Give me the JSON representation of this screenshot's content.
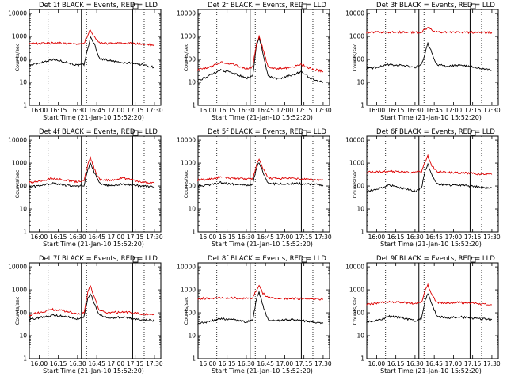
{
  "colors": {
    "events": "#000000",
    "lld": "#dd0000",
    "axis": "#000000",
    "background": "#ffffff"
  },
  "chart_data": [
    {
      "type": "line",
      "title": "Det 1f BLACK = Events, RED = LLD",
      "xlabel": "Start Time (21-Jan-10 15:52:20)",
      "ylabel": "Counts/sec",
      "xticks": [
        "16:00",
        "16:15",
        "16:30",
        "16:45",
        "17:00",
        "17:15",
        "17:30"
      ],
      "yticks": [
        "1",
        "10",
        "100",
        "1000",
        "10000"
      ],
      "ylim": [
        1,
        15000
      ],
      "yscale": "log",
      "series": [
        {
          "name": "Events",
          "x": [
            "15:52",
            "16:00",
            "16:10",
            "16:20",
            "16:30",
            "16:35",
            "16:38",
            "16:40",
            "16:43",
            "16:47",
            "16:55",
            "17:05",
            "17:13",
            "17:20",
            "17:30"
          ],
          "values": [
            55,
            70,
            100,
            80,
            55,
            60,
            300,
            900,
            500,
            110,
            90,
            70,
            70,
            60,
            45
          ]
        },
        {
          "name": "LLD",
          "x": [
            "15:52",
            "16:00",
            "16:10",
            "16:20",
            "16:30",
            "16:35",
            "16:38",
            "16:40",
            "16:43",
            "16:47",
            "16:55",
            "17:05",
            "17:13",
            "17:20",
            "17:30"
          ],
          "values": [
            480,
            500,
            520,
            510,
            480,
            500,
            1200,
            2000,
            1000,
            520,
            500,
            520,
            500,
            460,
            430
          ]
        }
      ]
    },
    {
      "type": "line",
      "title": "Det 2f BLACK = Events, RED = LLD",
      "xlabel": "Start Time (21-Jan-10 15:52:20)",
      "ylabel": "Counts/sec",
      "xticks": [
        "16:00",
        "16:15",
        "16:30",
        "16:45",
        "17:00",
        "17:15",
        "17:30"
      ],
      "yticks": [
        "1",
        "10",
        "100",
        "1000",
        "10000"
      ],
      "ylim": [
        1,
        15000
      ],
      "yscale": "log",
      "series": [
        {
          "name": "Events",
          "x": [
            "15:52",
            "16:00",
            "16:10",
            "16:20",
            "16:30",
            "16:35",
            "16:38",
            "16:40",
            "16:43",
            "16:47",
            "16:55",
            "17:05",
            "17:13",
            "17:20",
            "17:30"
          ],
          "values": [
            12,
            18,
            35,
            25,
            15,
            20,
            400,
            900,
            200,
            18,
            14,
            20,
            30,
            15,
            10
          ]
        },
        {
          "name": "LLD",
          "x": [
            "15:52",
            "16:00",
            "16:10",
            "16:20",
            "16:30",
            "16:35",
            "16:38",
            "16:40",
            "16:43",
            "16:47",
            "16:55",
            "17:05",
            "17:13",
            "17:20",
            "17:30"
          ],
          "values": [
            35,
            45,
            75,
            60,
            40,
            45,
            500,
            1000,
            280,
            45,
            40,
            45,
            60,
            40,
            30
          ]
        }
      ]
    },
    {
      "type": "line",
      "title": "Det 3f BLACK = Events, RED = LLD",
      "xlabel": "Start Time (21-Jan-10 15:52:20)",
      "ylabel": "Counts/sec",
      "xticks": [
        "16:00",
        "16:15",
        "16:30",
        "16:45",
        "17:00",
        "17:15",
        "17:30"
      ],
      "yticks": [
        "1",
        "10",
        "100",
        "1000",
        "10000"
      ],
      "ylim": [
        1,
        15000
      ],
      "yscale": "log",
      "series": [
        {
          "name": "Events",
          "x": [
            "15:52",
            "16:00",
            "16:10",
            "16:20",
            "16:30",
            "16:35",
            "16:38",
            "16:40",
            "16:43",
            "16:47",
            "16:55",
            "17:05",
            "17:13",
            "17:20",
            "17:30"
          ],
          "values": [
            40,
            45,
            60,
            55,
            45,
            60,
            200,
            500,
            200,
            60,
            50,
            55,
            50,
            40,
            35
          ]
        },
        {
          "name": "LLD",
          "x": [
            "15:52",
            "16:00",
            "16:10",
            "16:20",
            "16:30",
            "16:35",
            "16:38",
            "16:40",
            "16:43",
            "16:47",
            "16:55",
            "17:05",
            "17:13",
            "17:20",
            "17:30"
          ],
          "values": [
            1500,
            1520,
            1540,
            1530,
            1500,
            1550,
            2000,
            2600,
            1900,
            1550,
            1520,
            1530,
            1510,
            1500,
            1480
          ]
        }
      ]
    },
    {
      "type": "line",
      "title": "Det 4f BLACK = Events, RED = LLD",
      "xlabel": "Start Time (21-Jan-10 15:52:20)",
      "ylabel": "Counts/sec",
      "xticks": [
        "16:00",
        "16:15",
        "16:30",
        "16:45",
        "17:00",
        "17:15",
        "17:30"
      ],
      "yticks": [
        "1",
        "10",
        "100",
        "1000",
        "10000"
      ],
      "ylim": [
        1,
        15000
      ],
      "yscale": "log",
      "series": [
        {
          "name": "Events",
          "x": [
            "15:52",
            "16:00",
            "16:10",
            "16:20",
            "16:30",
            "16:35",
            "16:38",
            "16:40",
            "16:43",
            "16:47",
            "16:55",
            "17:05",
            "17:13",
            "17:20",
            "17:30"
          ],
          "values": [
            90,
            100,
            130,
            110,
            95,
            110,
            500,
            1000,
            400,
            130,
            100,
            120,
            110,
            100,
            90
          ]
        },
        {
          "name": "LLD",
          "x": [
            "15:52",
            "16:00",
            "16:10",
            "16:20",
            "16:30",
            "16:35",
            "16:38",
            "16:40",
            "16:43",
            "16:47",
            "16:55",
            "17:05",
            "17:13",
            "17:20",
            "17:30"
          ],
          "values": [
            140,
            160,
            220,
            180,
            150,
            170,
            900,
            1800,
            600,
            200,
            180,
            220,
            190,
            150,
            130
          ]
        }
      ]
    },
    {
      "type": "line",
      "title": "Det 5f BLACK = Events, RED = LLD",
      "xlabel": "Start Time (21-Jan-10 15:52:20)",
      "ylabel": "Counts/sec",
      "xticks": [
        "16:00",
        "16:15",
        "16:30",
        "16:45",
        "17:00",
        "17:15",
        "17:30"
      ],
      "yticks": [
        "1",
        "10",
        "100",
        "1000",
        "10000"
      ],
      "ylim": [
        1,
        15000
      ],
      "yscale": "log",
      "series": [
        {
          "name": "Events",
          "x": [
            "15:52",
            "16:00",
            "16:10",
            "16:20",
            "16:30",
            "16:35",
            "16:38",
            "16:40",
            "16:43",
            "16:47",
            "16:55",
            "17:05",
            "17:13",
            "17:20",
            "17:30"
          ],
          "values": [
            100,
            110,
            140,
            120,
            110,
            120,
            600,
            1100,
            400,
            130,
            120,
            130,
            125,
            120,
            110
          ]
        },
        {
          "name": "LLD",
          "x": [
            "15:52",
            "16:00",
            "16:10",
            "16:20",
            "16:30",
            "16:35",
            "16:38",
            "16:40",
            "16:43",
            "16:47",
            "16:55",
            "17:05",
            "17:13",
            "17:20",
            "17:30"
          ],
          "values": [
            180,
            200,
            240,
            220,
            200,
            210,
            800,
            1500,
            550,
            230,
            210,
            220,
            200,
            190,
            180
          ]
        }
      ]
    },
    {
      "type": "line",
      "title": "Det 6f BLACK = Events, RED = LLD",
      "xlabel": "Start Time (21-Jan-10 15:52:20)",
      "ylabel": "Counts/sec",
      "xticks": [
        "16:00",
        "16:15",
        "16:30",
        "16:45",
        "17:00",
        "17:15",
        "17:30"
      ],
      "yticks": [
        "1",
        "10",
        "100",
        "1000",
        "10000"
      ],
      "ylim": [
        1,
        15000
      ],
      "yscale": "log",
      "series": [
        {
          "name": "Events",
          "x": [
            "15:52",
            "16:00",
            "16:10",
            "16:20",
            "16:30",
            "16:35",
            "16:38",
            "16:40",
            "16:43",
            "16:47",
            "16:55",
            "17:05",
            "17:13",
            "17:20",
            "17:30"
          ],
          "values": [
            60,
            70,
            110,
            80,
            60,
            80,
            500,
            900,
            300,
            120,
            110,
            110,
            100,
            90,
            80
          ]
        },
        {
          "name": "LLD",
          "x": [
            "15:52",
            "16:00",
            "16:10",
            "16:20",
            "16:30",
            "16:35",
            "16:38",
            "16:40",
            "16:43",
            "16:47",
            "16:55",
            "17:05",
            "17:13",
            "17:20",
            "17:30"
          ],
          "values": [
            400,
            410,
            430,
            420,
            400,
            420,
            1200,
            2000,
            800,
            420,
            400,
            380,
            360,
            340,
            320
          ]
        }
      ]
    },
    {
      "type": "line",
      "title": "Det 7f BLACK = Events, RED = LLD",
      "xlabel": "Start Time (21-Jan-10 15:52:20)",
      "ylabel": "Counts/sec",
      "xticks": [
        "16:00",
        "16:15",
        "16:30",
        "16:45",
        "17:00",
        "17:15",
        "17:30"
      ],
      "yticks": [
        "1",
        "10",
        "100",
        "1000",
        "10000"
      ],
      "ylim": [
        1,
        15000
      ],
      "yscale": "log",
      "series": [
        {
          "name": "Events",
          "x": [
            "15:52",
            "16:00",
            "16:10",
            "16:20",
            "16:30",
            "16:35",
            "16:38",
            "16:40",
            "16:43",
            "16:47",
            "16:55",
            "17:05",
            "17:13",
            "17:20",
            "17:30"
          ],
          "values": [
            50,
            60,
            80,
            70,
            55,
            65,
            400,
            700,
            250,
            80,
            60,
            65,
            55,
            50,
            45
          ]
        },
        {
          "name": "LLD",
          "x": [
            "15:52",
            "16:00",
            "16:10",
            "16:20",
            "16:30",
            "16:35",
            "16:38",
            "16:40",
            "16:43",
            "16:47",
            "16:55",
            "17:05",
            "17:13",
            "17:20",
            "17:30"
          ],
          "values": [
            80,
            100,
            140,
            120,
            90,
            100,
            800,
            1500,
            500,
            120,
            100,
            110,
            100,
            90,
            80
          ]
        }
      ]
    },
    {
      "type": "line",
      "title": "Det 8f BLACK = Events, RED = LLD",
      "xlabel": "Start Time (21-Jan-10 15:52:20)",
      "ylabel": "Counts/sec",
      "xticks": [
        "16:00",
        "16:15",
        "16:30",
        "16:45",
        "17:00",
        "17:15",
        "17:30"
      ],
      "yticks": [
        "1",
        "10",
        "100",
        "1000",
        "10000"
      ],
      "ylim": [
        1,
        15000
      ],
      "yscale": "log",
      "series": [
        {
          "name": "Events",
          "x": [
            "15:52",
            "16:00",
            "16:10",
            "16:20",
            "16:30",
            "16:35",
            "16:38",
            "16:40",
            "16:43",
            "16:47",
            "16:55",
            "17:05",
            "17:13",
            "17:20",
            "17:30"
          ],
          "values": [
            35,
            40,
            55,
            50,
            40,
            50,
            400,
            800,
            200,
            50,
            45,
            50,
            45,
            40,
            35
          ]
        },
        {
          "name": "LLD",
          "x": [
            "15:52",
            "16:00",
            "16:10",
            "16:20",
            "16:30",
            "16:35",
            "16:38",
            "16:40",
            "16:43",
            "16:47",
            "16:55",
            "17:05",
            "17:13",
            "17:20",
            "17:30"
          ],
          "values": [
            420,
            430,
            460,
            440,
            420,
            440,
            1000,
            1700,
            700,
            450,
            430,
            420,
            410,
            400,
            380
          ]
        }
      ]
    },
    {
      "type": "line",
      "title": "Det 9f BLACK = Events, RED = LLD",
      "xlabel": "Start Time (21-Jan-10 15:52:20)",
      "ylabel": "Counts/sec",
      "xticks": [
        "16:00",
        "16:15",
        "16:30",
        "16:45",
        "17:00",
        "17:15",
        "17:30"
      ],
      "yticks": [
        "1",
        "10",
        "100",
        "1000",
        "10000"
      ],
      "ylim": [
        1,
        15000
      ],
      "yscale": "log",
      "series": [
        {
          "name": "Events",
          "x": [
            "15:52",
            "16:00",
            "16:10",
            "16:20",
            "16:30",
            "16:35",
            "16:38",
            "16:40",
            "16:43",
            "16:47",
            "16:55",
            "17:05",
            "17:13",
            "17:20",
            "17:30"
          ],
          "values": [
            40,
            45,
            70,
            60,
            45,
            55,
            350,
            700,
            250,
            70,
            60,
            65,
            60,
            55,
            50
          ]
        },
        {
          "name": "LLD",
          "x": [
            "15:52",
            "16:00",
            "16:10",
            "16:20",
            "16:30",
            "16:35",
            "16:38",
            "16:40",
            "16:43",
            "16:47",
            "16:55",
            "17:05",
            "17:13",
            "17:20",
            "17:30"
          ],
          "values": [
            240,
            260,
            300,
            280,
            250,
            270,
            1000,
            1700,
            650,
            280,
            270,
            280,
            260,
            240,
            220
          ]
        }
      ]
    }
  ]
}
